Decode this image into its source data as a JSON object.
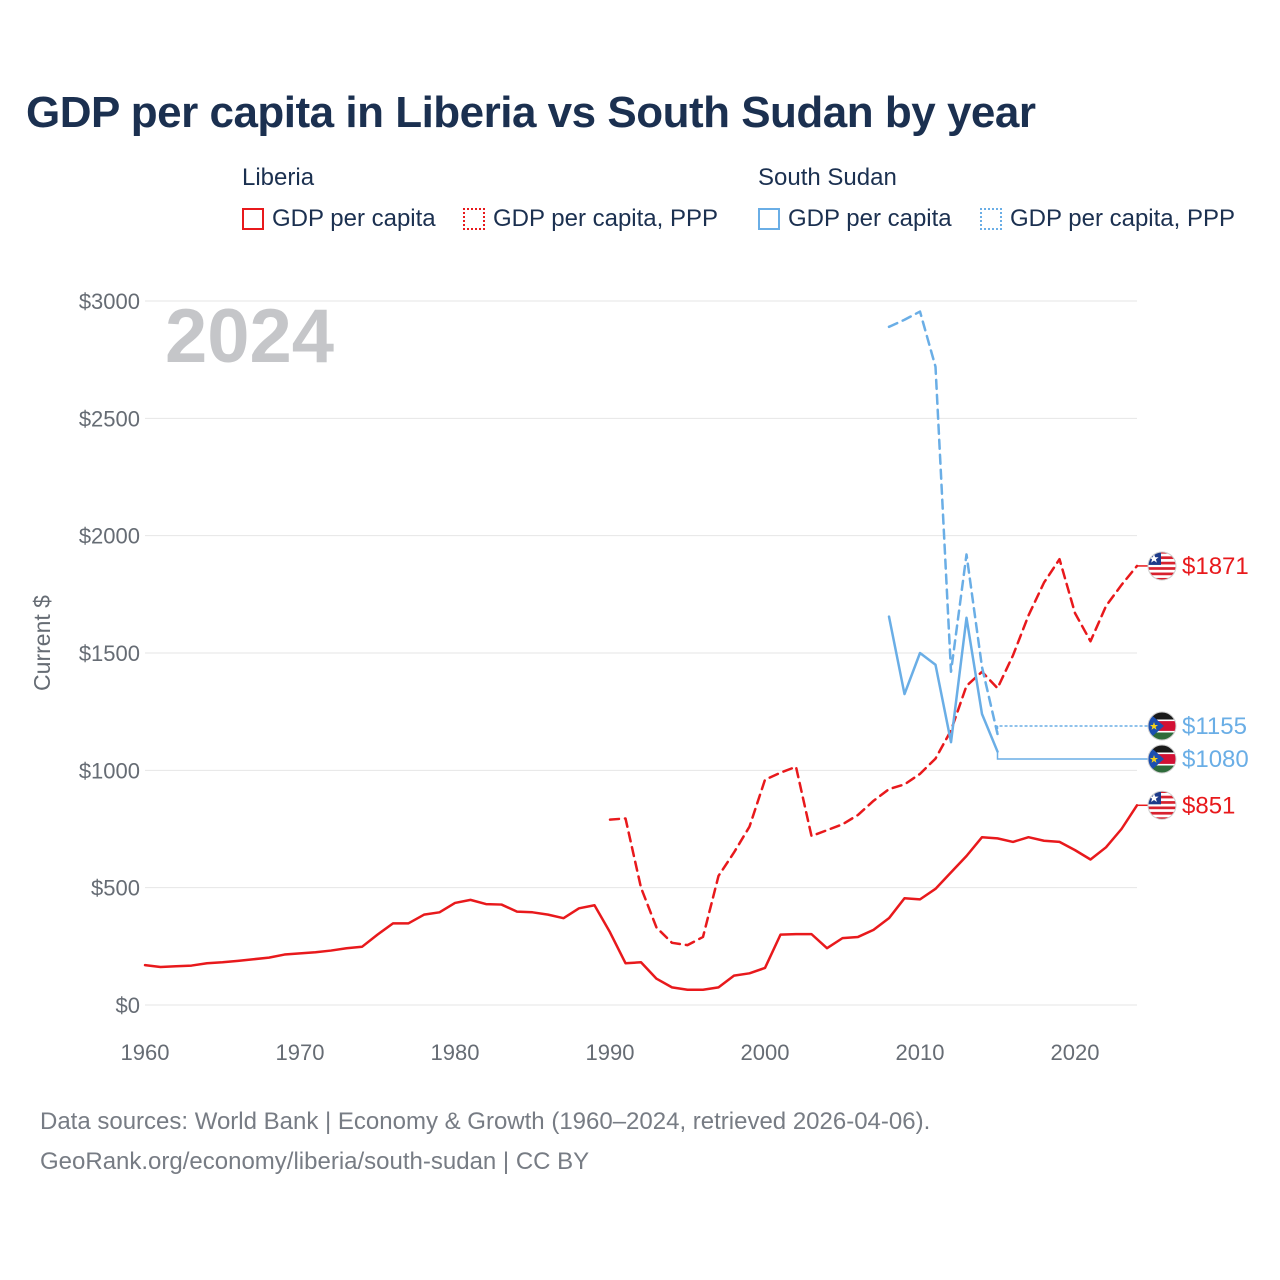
{
  "colors": {
    "liberia": "#e8191c",
    "south_sudan": "#6aaee6",
    "title": "#1b3050",
    "axis_text": "#666c74",
    "grid": "#e6e6e6"
  },
  "legend": {
    "liberia": {
      "group": "Liberia",
      "gdp": "GDP per capita",
      "ppp": "GDP per capita, PPP"
    },
    "south_sudan": {
      "group": "South Sudan",
      "gdp": "GDP per capita",
      "ppp": "GDP per capita, PPP"
    }
  },
  "footer": {
    "line1": "Data sources: World Bank | Economy & Growth (1960–2024, retrieved 2026-04-06).",
    "line2": "GeoRank.org/economy/liberia/south-sudan | CC BY"
  },
  "flags": {
    "liberia": "liberia-flag-icon",
    "south_sudan": "south-sudan-flag-icon"
  },
  "chart_data": {
    "type": "line",
    "title": "GDP per capita in Liberia vs South Sudan by year",
    "ylabel": "Current $",
    "xlabel": "",
    "year_label": "2024",
    "xlim": [
      1960,
      2024
    ],
    "ylim": [
      0,
      3000
    ],
    "xticks": [
      1960,
      1970,
      1980,
      1990,
      2000,
      2010,
      2020
    ],
    "xtick_labels": [
      "1960",
      "1970",
      "1980",
      "1990",
      "2000",
      "2010",
      "2020"
    ],
    "yticks": [
      0,
      500,
      1000,
      1500,
      2000,
      2500,
      3000
    ],
    "ytick_labels": [
      "$0",
      "$500",
      "$1000",
      "$1500",
      "$2000",
      "$2500",
      "$3000"
    ],
    "series": [
      {
        "name": "Liberia GDP per capita",
        "country": "liberia",
        "style": "solid",
        "x": [
          1960,
          1961,
          1962,
          1963,
          1964,
          1965,
          1966,
          1967,
          1968,
          1969,
          1970,
          1971,
          1972,
          1973,
          1974,
          1975,
          1976,
          1977,
          1978,
          1979,
          1980,
          1981,
          1982,
          1983,
          1984,
          1985,
          1986,
          1987,
          1988,
          1989,
          1990,
          1991,
          1992,
          1993,
          1994,
          1995,
          1996,
          1997,
          1998,
          1999,
          2000,
          2001,
          2002,
          2003,
          2004,
          2005,
          2006,
          2007,
          2008,
          2009,
          2010,
          2011,
          2012,
          2013,
          2014,
          2015,
          2016,
          2017,
          2018,
          2019,
          2020,
          2021,
          2022,
          2023,
          2024
        ],
        "values": [
          170,
          162,
          165,
          168,
          178,
          182,
          188,
          195,
          202,
          215,
          220,
          225,
          232,
          242,
          248,
          300,
          348,
          348,
          385,
          395,
          435,
          448,
          430,
          428,
          398,
          395,
          385,
          370,
          412,
          425,
          310,
          178,
          182,
          112,
          75,
          65,
          65,
          75,
          125,
          135,
          158,
          300,
          302,
          302,
          242,
          285,
          290,
          320,
          370,
          455,
          450,
          495,
          565,
          635,
          715,
          710,
          695,
          715,
          700,
          695,
          660,
          620,
          672,
          750,
          851
        ],
        "end_label": "$851"
      },
      {
        "name": "Liberia GDP per capita, PPP",
        "country": "liberia",
        "style": "dashed",
        "x": [
          1990,
          1991,
          1992,
          1993,
          1994,
          1995,
          1996,
          1997,
          1998,
          1999,
          2000,
          2001,
          2002,
          2003,
          2004,
          2005,
          2006,
          2007,
          2008,
          2009,
          2010,
          2011,
          2012,
          2013,
          2014,
          2015,
          2016,
          2017,
          2018,
          2019,
          2020,
          2021,
          2022,
          2023,
          2024
        ],
        "values": [
          790,
          795,
          500,
          330,
          265,
          255,
          290,
          550,
          650,
          760,
          960,
          990,
          1015,
          720,
          745,
          770,
          810,
          870,
          920,
          940,
          985,
          1050,
          1170,
          1360,
          1420,
          1350,
          1490,
          1660,
          1800,
          1900,
          1670,
          1550,
          1700,
          1790,
          1871
        ],
        "end_label": "$1871"
      },
      {
        "name": "South Sudan GDP per capita",
        "country": "south_sudan",
        "style": "solid",
        "x": [
          2008,
          2009,
          2010,
          2011,
          2012,
          2013,
          2014,
          2015
        ],
        "values": [
          1655,
          1325,
          1500,
          1450,
          1120,
          1650,
          1240,
          1080
        ],
        "end_label": "$1080"
      },
      {
        "name": "South Sudan GDP per capita, PPP",
        "country": "south_sudan",
        "style": "dashed",
        "x": [
          2008,
          2009,
          2010,
          2011,
          2012,
          2013,
          2014,
          2015
        ],
        "values": [
          2890,
          2920,
          2955,
          2720,
          1420,
          1920,
          1440,
          1155
        ],
        "end_label": "$1155"
      }
    ]
  }
}
